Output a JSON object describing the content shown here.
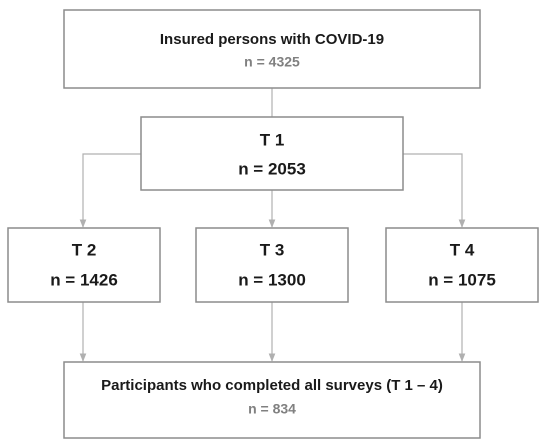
{
  "nodes": [
    {
      "label": "Insured persons with COVID-19",
      "count": "n = 4325"
    },
    {
      "label": "T 1",
      "count": "n = 2053"
    },
    {
      "label": "T 2",
      "count": "n = 1426"
    },
    {
      "label": "T 3",
      "count": "n = 1300"
    },
    {
      "label": "T 4",
      "count": "n = 1075"
    },
    {
      "label": "Participants who completed all surveys (T 1 – 4)",
      "count": "n = 834"
    }
  ]
}
